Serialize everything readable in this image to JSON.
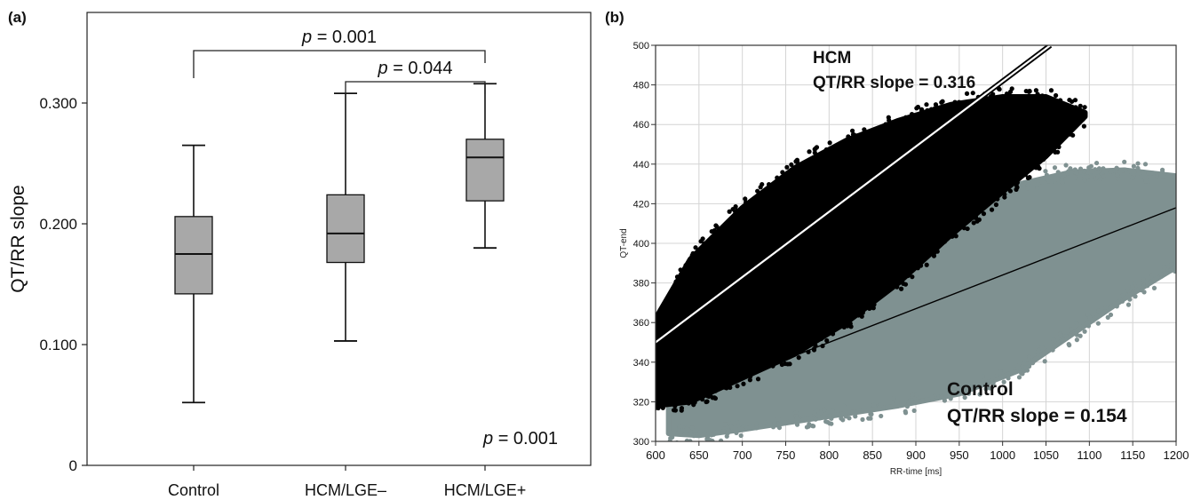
{
  "figure": {
    "panel_a_label": "(a)",
    "panel_b_label": "(b)"
  },
  "chart_data": [
    {
      "type": "box",
      "title": "",
      "xlabel": "",
      "ylabel": "QT/RR slope",
      "ylim": [
        0,
        0.375
      ],
      "y_ticks": [
        0,
        0.1,
        0.2,
        0.3
      ],
      "y_tick_labels": [
        "0",
        "0.100",
        "0.200",
        "0.300"
      ],
      "grid": false,
      "categories": [
        "Control",
        "HCM/LGE–",
        "HCM/LGE+"
      ],
      "boxes": [
        {
          "min": 0.052,
          "q1": 0.142,
          "median": 0.175,
          "q3": 0.206,
          "max": 0.265
        },
        {
          "min": 0.103,
          "q1": 0.168,
          "median": 0.192,
          "q3": 0.224,
          "max": 0.308
        },
        {
          "min": 0.18,
          "q1": 0.219,
          "median": 0.255,
          "q3": 0.27,
          "max": 0.316
        }
      ],
      "brackets": [
        {
          "from": "Control",
          "to": "HCM/LGE+",
          "p_italic": "p",
          "p_value": " = 0.001"
        },
        {
          "from": "HCM/LGE–",
          "to": "HCM/LGE+",
          "p_italic": "p",
          "p_value": " = 0.044"
        }
      ],
      "overall_annotation": {
        "p_italic": "p",
        "p_value": " = 0.001"
      },
      "colors": {
        "box_fill": "#a8a8a8",
        "line": "#111111"
      }
    },
    {
      "type": "scatter",
      "title": "",
      "xlabel": "RR-time [ms]",
      "ylabel": "QT-end",
      "xlim": [
        600,
        1200
      ],
      "ylim": [
        300,
        500
      ],
      "x_ticks": [
        600,
        650,
        700,
        750,
        800,
        850,
        900,
        950,
        1000,
        1050,
        1100,
        1150,
        1200
      ],
      "y_ticks": [
        300,
        320,
        340,
        360,
        380,
        400,
        420,
        440,
        460,
        480,
        500
      ],
      "grid": true,
      "series": [
        {
          "name": "HCM",
          "color": "#000000",
          "cloud": {
            "x_range": [
              600,
              1095
            ],
            "upper": [
              [
                600,
                362
              ],
              [
                640,
                392
              ],
              [
                700,
                418
              ],
              [
                760,
                438
              ],
              [
                820,
                452
              ],
              [
                880,
                462
              ],
              [
                940,
                470
              ],
              [
                1000,
                474
              ],
              [
                1050,
                474
              ],
              [
                1095,
                466
              ]
            ],
            "lower": [
              [
                600,
                318
              ],
              [
                640,
                320
              ],
              [
                700,
                332
              ],
              [
                760,
                344
              ],
              [
                820,
                360
              ],
              [
                880,
                380
              ],
              [
                940,
                404
              ],
              [
                1000,
                426
              ],
              [
                1050,
                444
              ],
              [
                1095,
                464
              ]
            ]
          },
          "fit_line": [
            [
              600,
              350
            ],
            [
              1055,
              500
            ]
          ],
          "annotation": [
            "HCM",
            "QT/RR slope = 0.316"
          ]
        },
        {
          "name": "Control",
          "color": "#7f9191",
          "cloud": {
            "x_range": [
              615,
              1200
            ],
            "upper": [
              [
                615,
                322
              ],
              [
                650,
                336
              ],
              [
                700,
                356
              ],
              [
                760,
                378
              ],
              [
                820,
                396
              ],
              [
                880,
                410
              ],
              [
                950,
                422
              ],
              [
                1020,
                430
              ],
              [
                1080,
                436
              ],
              [
                1140,
                437
              ],
              [
                1200,
                434
              ]
            ],
            "lower": [
              [
                615,
                304
              ],
              [
                650,
                303
              ],
              [
                700,
                306
              ],
              [
                760,
                310
              ],
              [
                820,
                314
              ],
              [
                880,
                318
              ],
              [
                950,
                324
              ],
              [
                1020,
                336
              ],
              [
                1080,
                354
              ],
              [
                1140,
                372
              ],
              [
                1200,
                388
              ]
            ]
          },
          "fit_line": [
            [
              600,
              316
            ],
            [
              1200,
              418
            ]
          ],
          "annotation": [
            "Control",
            "QT/RR slope = 0.154"
          ]
        }
      ]
    }
  ]
}
